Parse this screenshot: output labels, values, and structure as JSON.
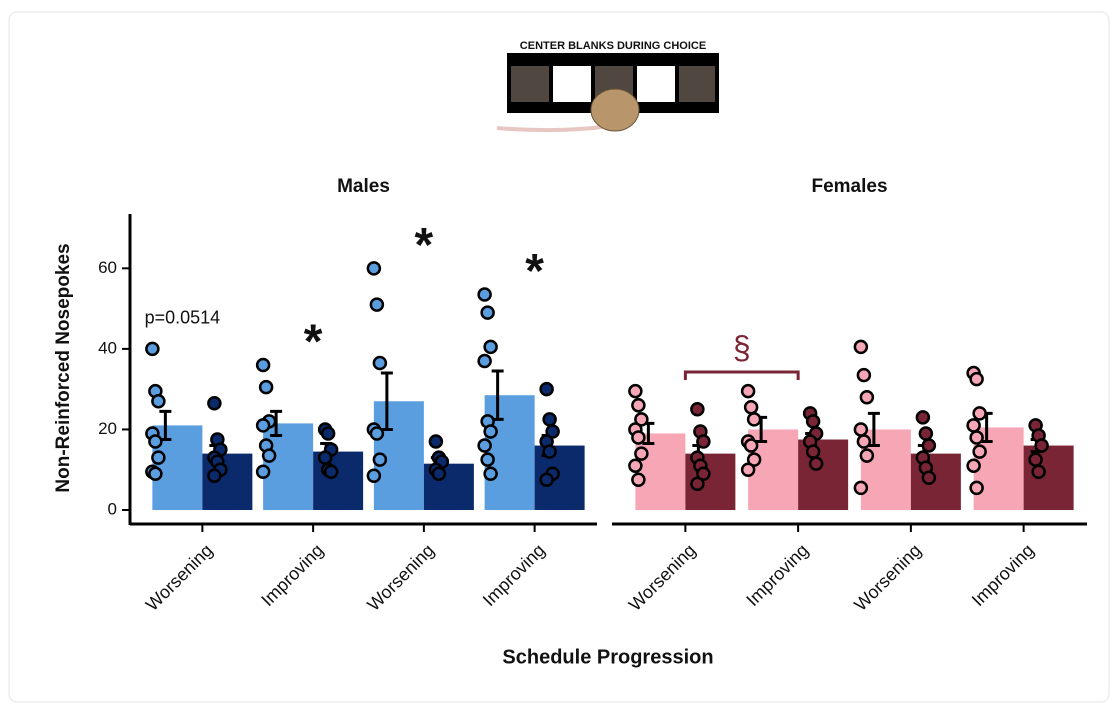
{
  "figure_caption": "CENTER BLANKS DURING CHOICE",
  "xlabel": "Schedule Progression",
  "chart_data": [
    {
      "type": "bar",
      "title": "Males",
      "ylabel": "Non-Reinforced Nosepokes",
      "ylim": [
        0,
        72
      ],
      "yticks": [
        0,
        20,
        40,
        60
      ],
      "categories": [
        "Worsening",
        "Improving",
        "Worsening",
        "Improving"
      ],
      "series": [
        {
          "color": "#5b9ee0",
          "values": [
            21,
            21.5,
            27,
            28.5
          ],
          "errors": [
            3.5,
            3,
            7,
            6
          ],
          "points": [
            [
              40,
              29.5,
              27,
              19,
              17,
              13,
              9.5,
              9
            ],
            [
              36,
              30.5,
              22,
              21,
              16,
              13.5,
              9.5
            ],
            [
              60,
              51,
              36.5,
              20,
              19,
              12.5,
              8.5
            ],
            [
              53.5,
              49,
              40.5,
              37,
              22,
              19.5,
              16,
              12.5,
              9
            ]
          ]
        },
        {
          "color": "#0b2a6b",
          "values": [
            14,
            14.5,
            11.5,
            16
          ],
          "errors": [
            2,
            2,
            1.5,
            2.5
          ],
          "points": [
            [
              26.5,
              17.5,
              15,
              13,
              12,
              10,
              8.5
            ],
            [
              20,
              19,
              15,
              13,
              10,
              9.5
            ],
            [
              17,
              13,
              12,
              10,
              9
            ],
            [
              30,
              22.5,
              19.5,
              17,
              14.5,
              9,
              7.5
            ]
          ]
        }
      ],
      "annotations": [
        {
          "text": "p=0.0514",
          "category": 0
        },
        {
          "text": "*",
          "category": 1
        },
        {
          "text": "*",
          "category": 2
        },
        {
          "text": "*",
          "category": 3
        }
      ]
    },
    {
      "type": "bar",
      "title": "Females",
      "categories": [
        "Worsening",
        "Improving",
        "Worsening",
        "Improving"
      ],
      "series": [
        {
          "color": "#f7a6b5",
          "values": [
            19,
            20,
            20,
            20.5
          ],
          "errors": [
            2.5,
            3,
            4,
            3.5
          ],
          "points": [
            [
              29.5,
              26,
              22.5,
              20,
              18,
              14,
              11,
              7.5
            ],
            [
              29.5,
              25.5,
              22.5,
              17,
              16,
              12.5,
              10
            ],
            [
              40.5,
              33.5,
              28,
              20,
              17,
              13.5,
              5.5
            ],
            [
              34,
              32.5,
              24,
              21,
              18,
              14.5,
              11,
              5.5
            ]
          ]
        },
        {
          "color": "#7a2535",
          "values": [
            14,
            17.5,
            14,
            16
          ],
          "errors": [
            2,
            1.5,
            2,
            1.5
          ],
          "points": [
            [
              25,
              19.5,
              17,
              13,
              11,
              9,
              6.5
            ],
            [
              24,
              22,
              19,
              17,
              14.5,
              11.5
            ],
            [
              23,
              19,
              16,
              13,
              10.5,
              8
            ],
            [
              21,
              18.5,
              16,
              12.5,
              9.5
            ]
          ]
        }
      ],
      "brackets": [
        {
          "text": "§",
          "from": 0,
          "to": 1,
          "color": "#7a2535"
        }
      ]
    }
  ]
}
